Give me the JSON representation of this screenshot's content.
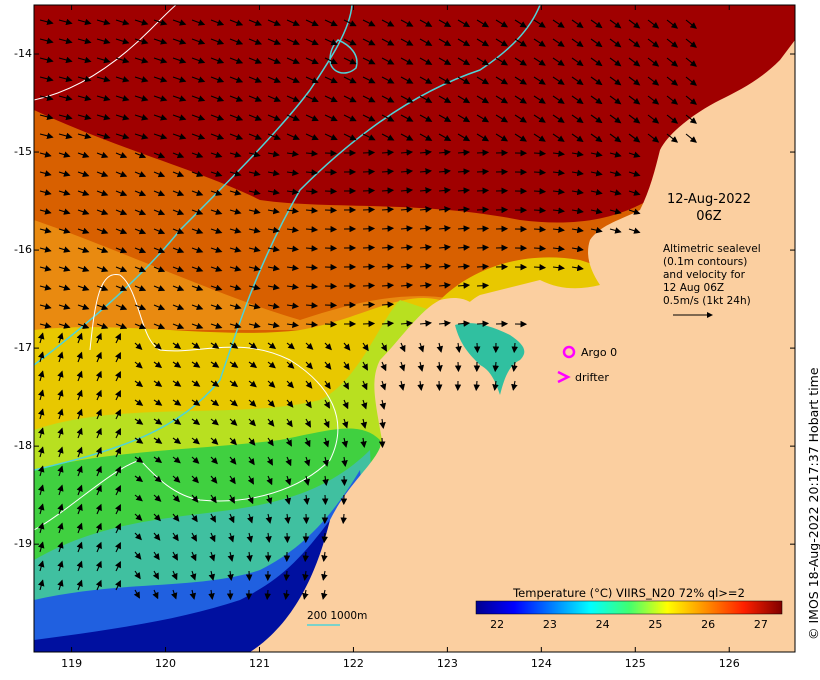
{
  "map": {
    "date_line1": "12-Aug-2022",
    "date_line2": "06Z",
    "altimetry_note": "Altimetric sealevel\n(0.1m contours)\nand velocity for\n12 Aug 06Z\n0.5m/s (1kt 24h)",
    "argo_label": "Argo 0",
    "drifter_label": "drifter",
    "contour_legend_label": "200  1000m",
    "credit": "© IMOS 18-Aug-2022 20:17:37 Hobart time",
    "colorbar": {
      "title": "Temperature (°C) VIIRS_N20 72% ql>=2",
      "ticks": [
        "22",
        "23",
        "24",
        "25",
        "26",
        "27"
      ],
      "range": [
        21.6,
        27.4
      ],
      "colormap": "jet"
    },
    "axes": {
      "lon_ticks": [
        "119",
        "120",
        "121",
        "122",
        "123",
        "124",
        "125",
        "126"
      ],
      "lat_ticks": [
        "-14",
        "-15",
        "-16",
        "-17",
        "-18",
        "-19"
      ],
      "lon_range": [
        118.6,
        126.7
      ],
      "lat_range": [
        -20.1,
        -13.5
      ]
    },
    "colors": {
      "land": "#fbcfa0",
      "bathymetry_contour": "#4fd3d8",
      "sealevel_contour": "#ffffff",
      "argo_marker": "#ff00ff",
      "drifter_marker": "#ff00ff"
    }
  }
}
